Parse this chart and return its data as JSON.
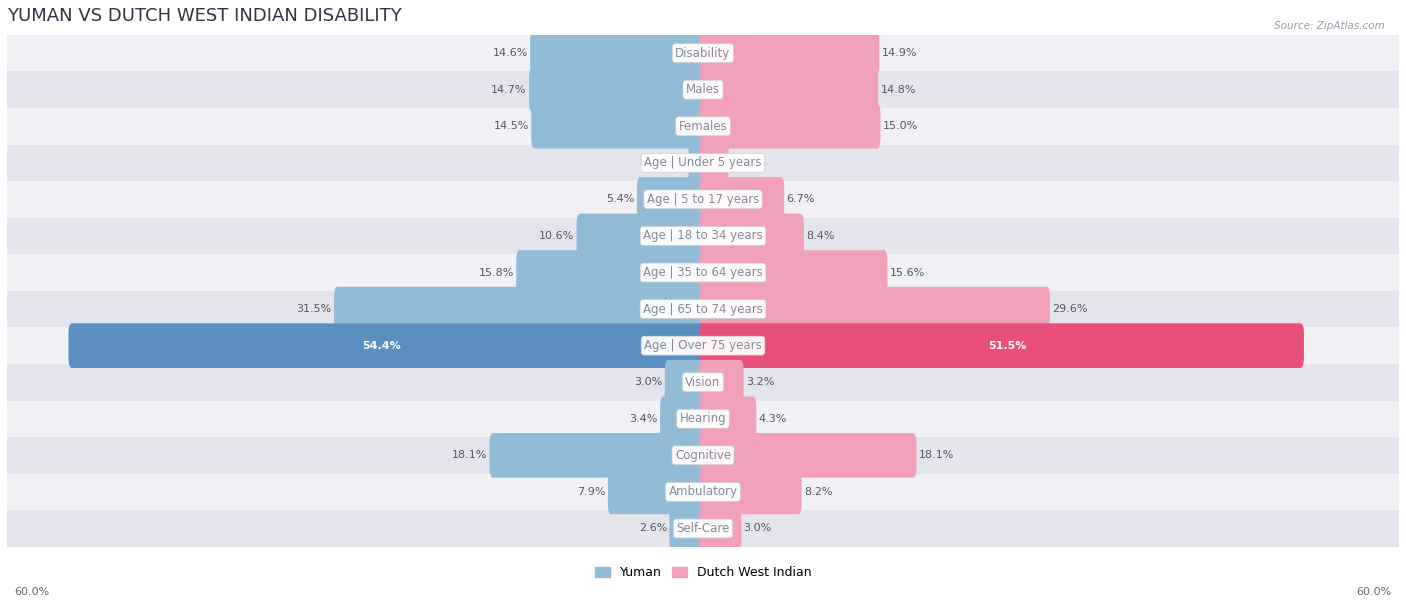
{
  "title": "YUMAN VS DUTCH WEST INDIAN DISABILITY",
  "source": "Source: ZipAtlas.com",
  "categories": [
    "Disability",
    "Males",
    "Females",
    "Age | Under 5 years",
    "Age | 5 to 17 years",
    "Age | 18 to 34 years",
    "Age | 35 to 64 years",
    "Age | 65 to 74 years",
    "Age | Over 75 years",
    "Vision",
    "Hearing",
    "Cognitive",
    "Ambulatory",
    "Self-Care"
  ],
  "yuman_values": [
    14.6,
    14.7,
    14.5,
    0.95,
    5.4,
    10.6,
    15.8,
    31.5,
    54.4,
    3.0,
    3.4,
    18.1,
    7.9,
    2.6
  ],
  "dutch_values": [
    14.9,
    14.8,
    15.0,
    1.9,
    6.7,
    8.4,
    15.6,
    29.6,
    51.5,
    3.2,
    4.3,
    18.1,
    8.2,
    3.0
  ],
  "yuman_color": "#92bcd6",
  "dutch_color": "#f0a0b8",
  "yuman_over75_color": "#5a8fc0",
  "dutch_over75_color": "#e8507a",
  "row_bg_even": "#f0f0f5",
  "row_bg_odd": "#e4e4ec",
  "axis_max": 60.0,
  "legend_yuman": "Yuman",
  "legend_dutch": "Dutch West Indian",
  "bar_height": 0.62,
  "title_fontsize": 13,
  "label_fontsize": 8.5,
  "value_fontsize": 8.0,
  "center_label_color": "#888899",
  "value_label_color": "#555566",
  "over75_value_color": "#ffffff"
}
